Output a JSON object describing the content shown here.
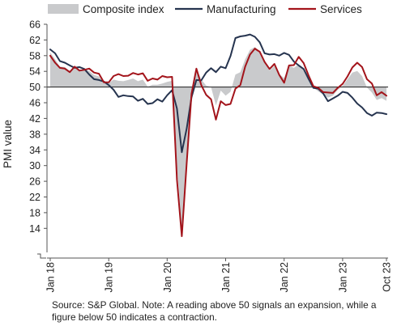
{
  "chart_data": {
    "type": "area+line",
    "ylabel": "PMI value",
    "ylim": [
      12,
      66
    ],
    "y_ticks": [
      "66",
      "62",
      "58",
      "54",
      "50",
      "46",
      "42",
      "38",
      "34",
      "30",
      "26",
      "22",
      "18",
      "14"
    ],
    "x_ticks": [
      "Jan 18",
      "Jan 19",
      "Jan 20",
      "Jan 21",
      "Jan 22",
      "Jan 23",
      "Oct 23"
    ],
    "reference_line": 50,
    "legend": {
      "placement": "top",
      "entries": [
        "Composite index",
        "Manufacturing",
        "Services"
      ]
    },
    "colors": {
      "composite": "#c9cacc",
      "manufacturing": "#26344f",
      "services": "#a3141b"
    },
    "x": [
      "2018-01",
      "2018-02",
      "2018-03",
      "2018-04",
      "2018-05",
      "2018-06",
      "2018-07",
      "2018-08",
      "2018-09",
      "2018-10",
      "2018-11",
      "2018-12",
      "2019-01",
      "2019-02",
      "2019-03",
      "2019-04",
      "2019-05",
      "2019-06",
      "2019-07",
      "2019-08",
      "2019-09",
      "2019-10",
      "2019-11",
      "2019-12",
      "2020-01",
      "2020-02",
      "2020-03",
      "2020-04",
      "2020-05",
      "2020-06",
      "2020-07",
      "2020-08",
      "2020-09",
      "2020-10",
      "2020-11",
      "2020-12",
      "2021-01",
      "2021-02",
      "2021-03",
      "2021-04",
      "2021-05",
      "2021-06",
      "2021-07",
      "2021-08",
      "2021-09",
      "2021-10",
      "2021-11",
      "2021-12",
      "2022-01",
      "2022-02",
      "2022-03",
      "2022-04",
      "2022-05",
      "2022-06",
      "2022-07",
      "2022-08",
      "2022-09",
      "2022-10",
      "2022-11",
      "2022-12",
      "2023-01",
      "2023-02",
      "2023-03",
      "2023-04",
      "2023-05",
      "2023-06",
      "2023-07",
      "2023-08",
      "2023-09",
      "2023-10"
    ],
    "series": [
      {
        "name": "Composite index",
        "style": "area",
        "values": [
          58.8,
          57.1,
          55.2,
          55.1,
          54.1,
          54.9,
          54.3,
          54.5,
          54.1,
          53.1,
          52.7,
          51.1,
          51.0,
          51.9,
          51.6,
          51.5,
          51.8,
          52.2,
          51.5,
          51.9,
          50.1,
          50.6,
          50.6,
          50.9,
          51.3,
          51.6,
          29.7,
          13.6,
          31.9,
          48.5,
          54.9,
          51.9,
          50.4,
          50.0,
          45.3,
          49.1,
          47.8,
          48.8,
          53.2,
          53.8,
          57.1,
          59.5,
          60.2,
          59.0,
          56.2,
          54.2,
          55.4,
          53.3,
          52.3,
          55.5,
          54.9,
          55.8,
          54.8,
          52.0,
          49.9,
          48.9,
          48.1,
          47.3,
          47.8,
          49.3,
          50.3,
          52.0,
          53.7,
          54.1,
          52.8,
          49.9,
          48.6,
          46.7,
          47.2,
          46.5
        ]
      },
      {
        "name": "Manufacturing",
        "style": "line",
        "values": [
          59.6,
          58.6,
          56.6,
          56.2,
          55.5,
          54.9,
          55.1,
          54.6,
          53.2,
          52.0,
          51.8,
          51.4,
          50.5,
          49.3,
          47.5,
          47.9,
          47.7,
          47.6,
          46.5,
          47.0,
          45.7,
          45.9,
          46.9,
          46.3,
          47.9,
          49.2,
          44.5,
          33.4,
          39.4,
          47.4,
          51.8,
          51.7,
          53.7,
          54.8,
          53.8,
          55.2,
          54.8,
          57.9,
          62.5,
          62.9,
          63.1,
          63.4,
          62.8,
          61.4,
          58.6,
          58.3,
          58.4,
          58.0,
          58.7,
          58.2,
          56.5,
          55.5,
          54.6,
          52.1,
          49.8,
          49.6,
          48.4,
          46.4,
          47.1,
          47.8,
          48.8,
          48.5,
          47.3,
          45.8,
          44.8,
          43.4,
          42.7,
          43.5,
          43.4,
          43.1
        ]
      },
      {
        "name": "Services",
        "style": "line",
        "values": [
          58.0,
          56.2,
          54.9,
          54.7,
          53.8,
          55.2,
          54.2,
          54.4,
          54.7,
          53.7,
          53.4,
          51.2,
          51.2,
          52.8,
          53.3,
          52.8,
          52.9,
          53.6,
          53.2,
          53.5,
          51.6,
          52.2,
          51.9,
          52.8,
          52.5,
          52.6,
          26.4,
          12.0,
          30.5,
          48.3,
          54.7,
          50.5,
          48.0,
          46.9,
          41.7,
          46.4,
          45.4,
          45.7,
          49.6,
          50.5,
          55.2,
          58.3,
          59.8,
          59.0,
          56.4,
          54.6,
          55.9,
          53.1,
          51.1,
          55.5,
          55.6,
          57.7,
          56.1,
          53.0,
          50.2,
          49.8,
          48.7,
          48.6,
          48.5,
          49.8,
          50.8,
          52.7,
          55.0,
          56.2,
          55.1,
          52.0,
          50.9,
          47.9,
          48.7,
          47.8
        ]
      }
    ]
  },
  "footer": {
    "source_note": "Source: S&P Global. Note: A reading above 50 signals an expansion, while a figure below 50 indicates a contraction."
  }
}
